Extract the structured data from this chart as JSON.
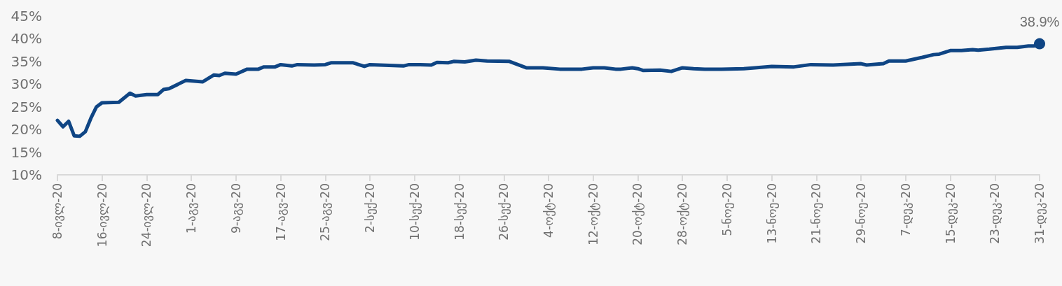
{
  "chart_data": {
    "type": "line",
    "x": [
      "--07-08",
      "--07-09",
      "--07-10",
      "--07-11",
      "--07-12",
      "--07-13",
      "--07-14",
      "--07-15",
      "--07-16",
      "--07-19",
      "--07-21",
      "--07-22",
      "--07-24",
      "--07-26",
      "--07-27",
      "--07-28",
      "--07-31",
      "--08-03",
      "--08-05",
      "--08-06",
      "--08-07",
      "--08-09",
      "--08-11",
      "--08-13",
      "--08-14",
      "--08-16",
      "--08-17",
      "--08-19",
      "--08-20",
      "--08-23",
      "--08-25",
      "--08-26",
      "--08-30",
      "--09-01",
      "--09-02",
      "--09-08",
      "--09-09",
      "--09-11",
      "--09-13",
      "--09-14",
      "--09-16",
      "--09-17",
      "--09-19",
      "--09-21",
      "--09-23",
      "--09-27",
      "--09-30",
      "--10-03",
      "--10-06",
      "--10-10",
      "--10-12",
      "--10-14",
      "--10-16",
      "--10-17",
      "--10-19",
      "--10-20",
      "--10-21",
      "--10-24",
      "--10-26",
      "--10-28",
      "--10-30",
      "--11-01",
      "--11-04",
      "--11-08",
      "--11-10",
      "--11-13",
      "--11-17",
      "--11-20",
      "--11-24",
      "--11-29",
      "--11-30",
      "--12-03",
      "--12-04",
      "--12-07",
      "--12-10",
      "--12-12",
      "--12-13",
      "--12-15",
      "--12-17",
      "--12-19",
      "--12-20",
      "--12-22",
      "--12-25",
      "--12-27",
      "--12-29",
      "--12-30",
      "--12-31"
    ],
    "series": [
      {
        "color": "#0f4584",
        "values": [
          22.0,
          20.6,
          21.8,
          18.6,
          18.5,
          19.5,
          22.5,
          25.0,
          25.9,
          26.0,
          28.0,
          27.4,
          27.7,
          27.7,
          28.8,
          29.0,
          30.8,
          30.5,
          32.0,
          31.9,
          32.4,
          32.2,
          33.3,
          33.3,
          33.8,
          33.8,
          34.3,
          34.0,
          34.3,
          34.2,
          34.3,
          34.7,
          34.7,
          33.9,
          34.3,
          34.0,
          34.3,
          34.3,
          34.2,
          34.8,
          34.7,
          35.0,
          34.9,
          35.3,
          35.1,
          35.0,
          33.6,
          33.6,
          33.3,
          33.3,
          33.6,
          33.6,
          33.3,
          33.3,
          33.6,
          33.4,
          33.0,
          33.1,
          32.8,
          33.6,
          33.4,
          33.3,
          33.3,
          33.4,
          33.6,
          33.9,
          33.8,
          34.3,
          34.2,
          34.5,
          34.2,
          34.5,
          35.1,
          35.1,
          35.9,
          36.5,
          36.6,
          37.4,
          37.4,
          37.6,
          37.5,
          37.7,
          38.1,
          38.1,
          38.4,
          38.4,
          38.9
        ],
        "value_labels": [
          null,
          null,
          null,
          null,
          null,
          null,
          null,
          null,
          null,
          null,
          null,
          null,
          null,
          null,
          null,
          null,
          null,
          null,
          null,
          null,
          null,
          null,
          null,
          null,
          null,
          null,
          null,
          null,
          null,
          null,
          null,
          null,
          null,
          null,
          null,
          null,
          null,
          null,
          null,
          null,
          null,
          null,
          null,
          null,
          null,
          null,
          null,
          null,
          null,
          null,
          null,
          null,
          null,
          null,
          null,
          null,
          null,
          null,
          null,
          null,
          null,
          null,
          null,
          null,
          null,
          null,
          null,
          null,
          null,
          null,
          null,
          null,
          null,
          null,
          null,
          null,
          null,
          null,
          null,
          null,
          null,
          null,
          null,
          null,
          null,
          null,
          "38.9%"
        ]
      }
    ],
    "xlim": [
      "--07-08",
      "--12-31"
    ],
    "xticks": [
      {
        "value": "--07-08",
        "label": "8-ივლ-20"
      },
      {
        "value": "--07-16",
        "label": "16-ივლ-20"
      },
      {
        "value": "--07-24",
        "label": "24-ივლ-20"
      },
      {
        "value": "--08-01",
        "label": "1-აგვ-20"
      },
      {
        "value": "--08-09",
        "label": "9-აგვ-20"
      },
      {
        "value": "--08-17",
        "label": "17-აგვ-20"
      },
      {
        "value": "--08-25",
        "label": "25-აგვ-20"
      },
      {
        "value": "--09-02",
        "label": "2-სექ-20"
      },
      {
        "value": "--09-10",
        "label": "10-სექ-20"
      },
      {
        "value": "--09-18",
        "label": "18-სექ-20"
      },
      {
        "value": "--09-26",
        "label": "26-სექ-20"
      },
      {
        "value": "--10-04",
        "label": "4-ოქტ-20"
      },
      {
        "value": "--10-12",
        "label": "12-ოქტ-20"
      },
      {
        "value": "--10-20",
        "label": "20-ოქტ-20"
      },
      {
        "value": "--10-28",
        "label": "28-ოქტ-20"
      },
      {
        "value": "--11-05",
        "label": "5-ნოე-20"
      },
      {
        "value": "--11-13",
        "label": "13-ნოე-20"
      },
      {
        "value": "--11-21",
        "label": "21-ნოე-20"
      },
      {
        "value": "--11-29",
        "label": "29-ნოე-20"
      },
      {
        "value": "--12-07",
        "label": "7-დეკ-20"
      },
      {
        "value": "--12-15",
        "label": "15-დეკ-20"
      },
      {
        "value": "--12-23",
        "label": "23-დეკ-20"
      },
      {
        "value": "--12-31",
        "label": "31-დეკ-20"
      }
    ],
    "ylim": [
      10,
      45
    ],
    "yticks": [
      {
        "value": 10,
        "label": "10%"
      },
      {
        "value": 15,
        "label": "15%"
      },
      {
        "value": 20,
        "label": "20%"
      },
      {
        "value": 25,
        "label": "25%"
      },
      {
        "value": 30,
        "label": "30%"
      },
      {
        "value": 35,
        "label": "35%"
      },
      {
        "value": 40,
        "label": "40%"
      },
      {
        "value": 45,
        "label": "45%"
      }
    ],
    "marker": "none",
    "line_style": "solid",
    "grid": false
  }
}
